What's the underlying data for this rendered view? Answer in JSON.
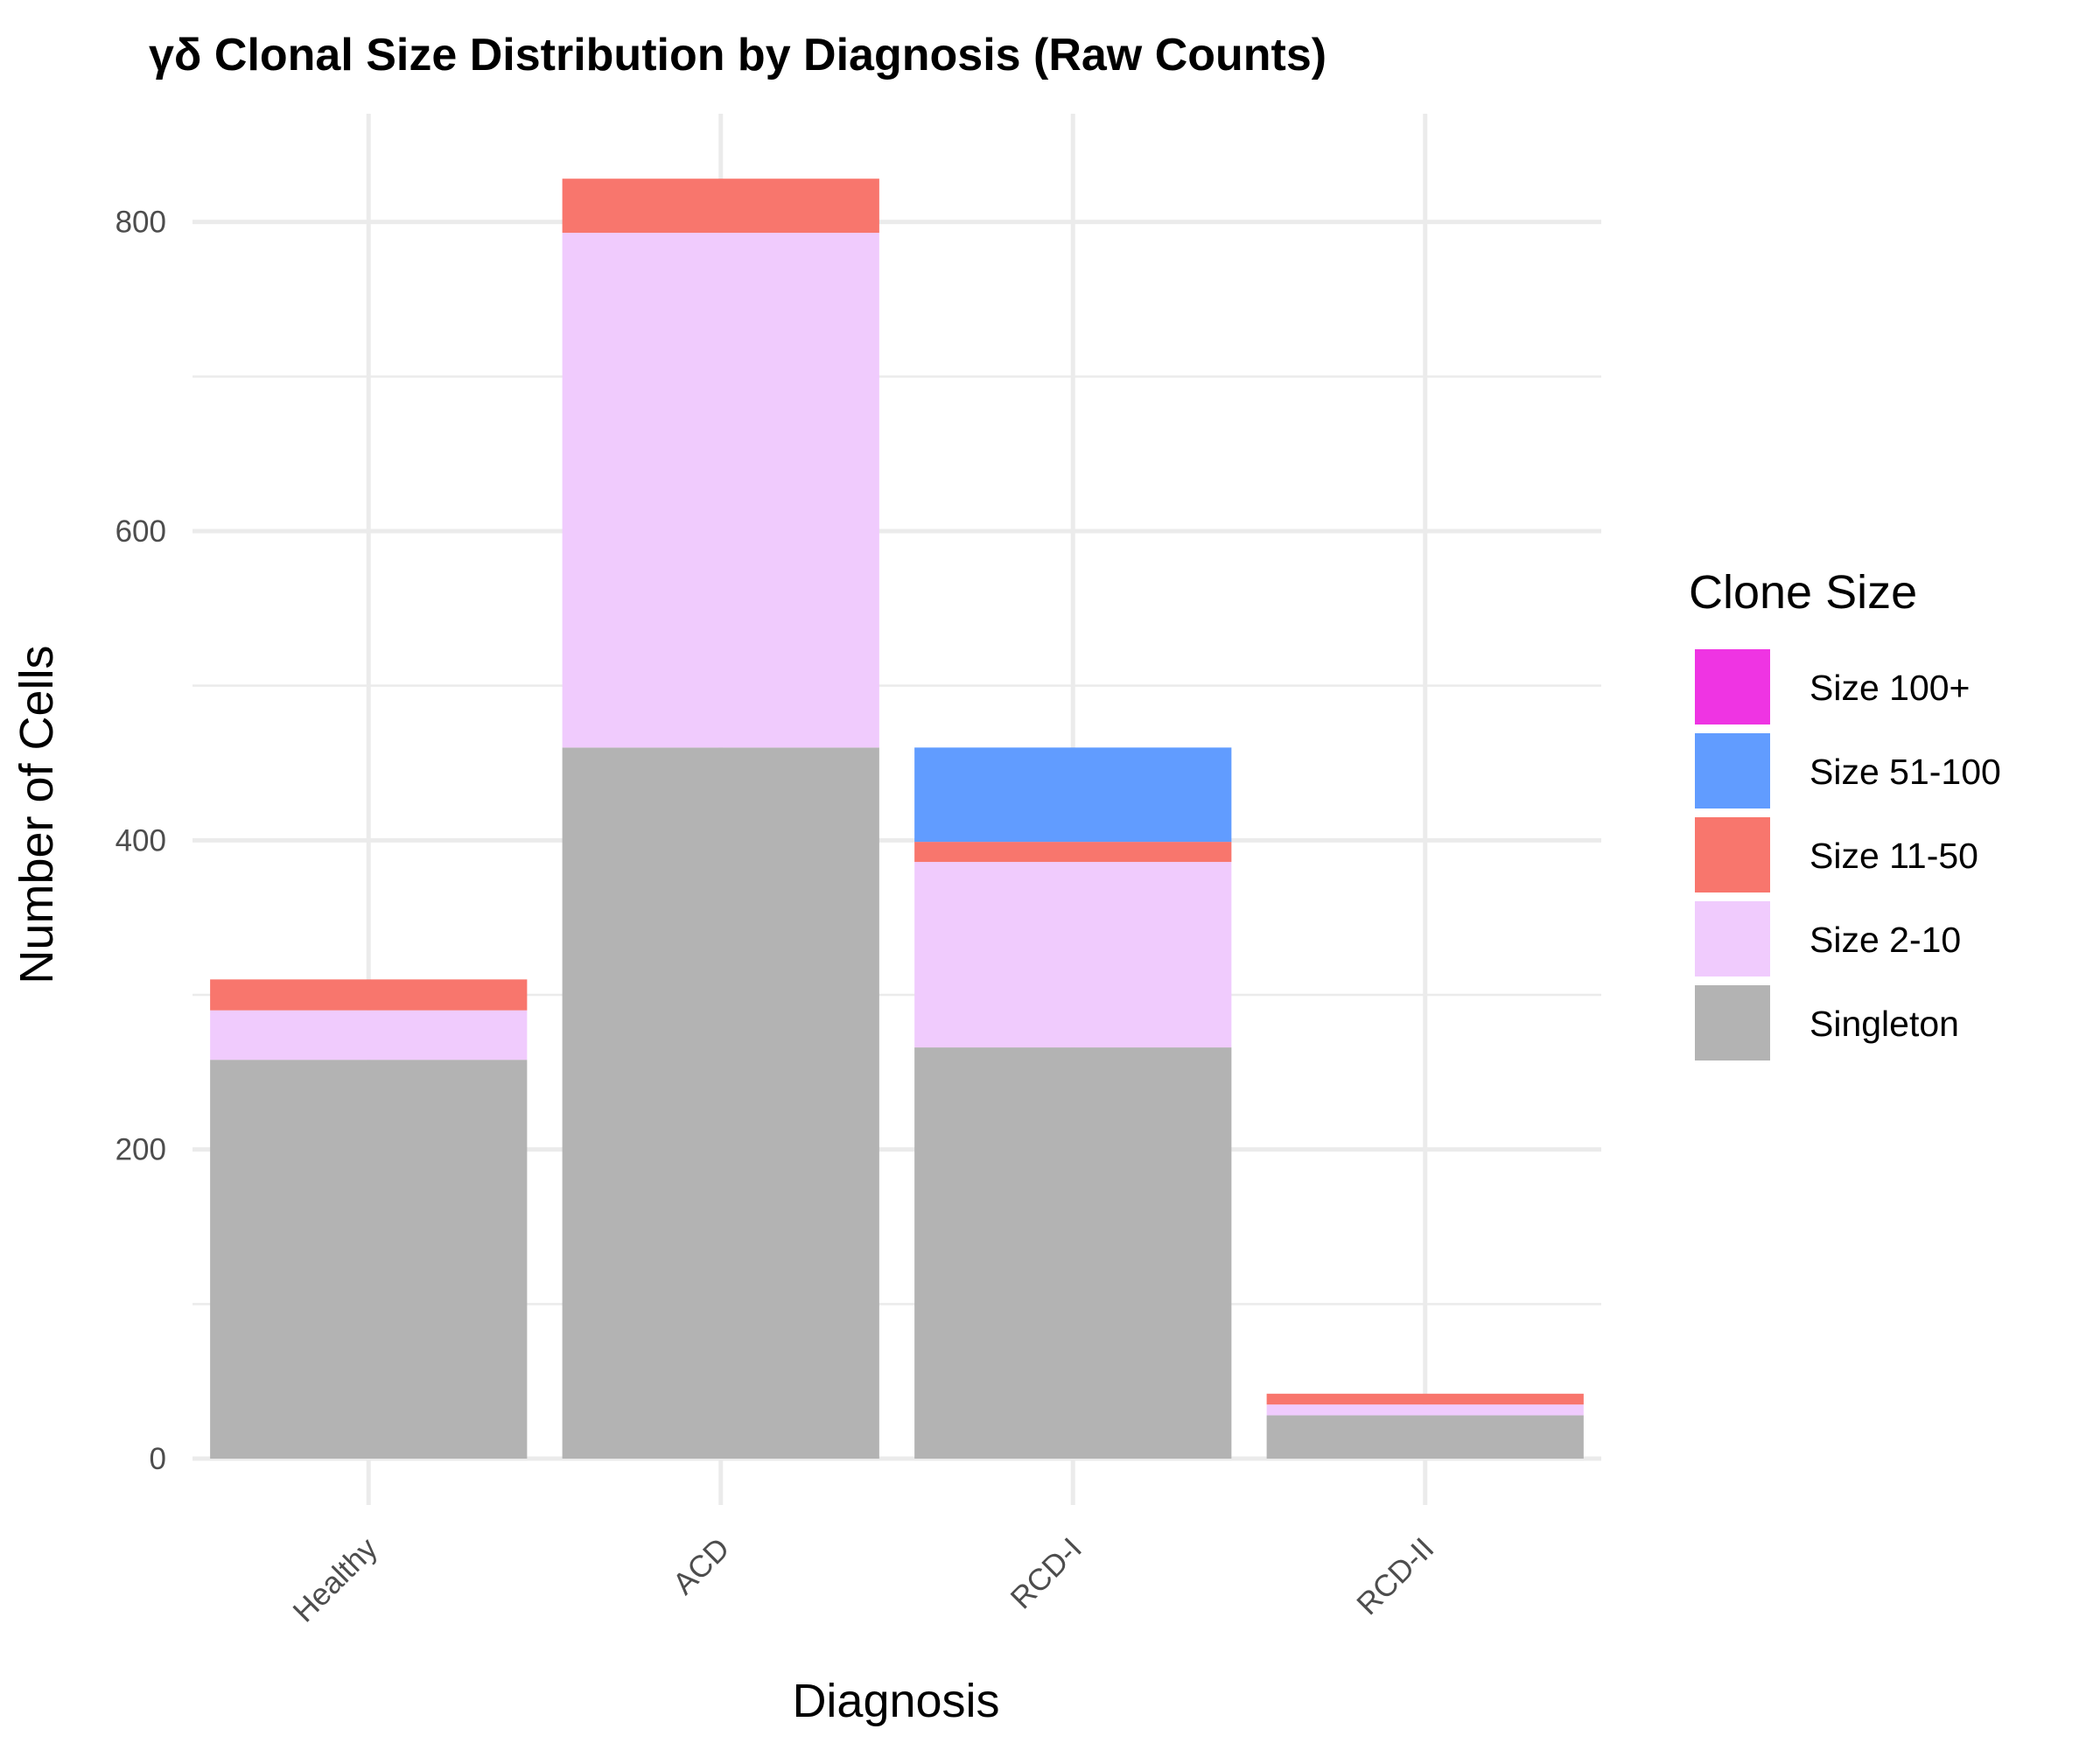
{
  "chart_data": {
    "type": "bar",
    "stacked": true,
    "title": "γδ Clonal Size Distribution by Diagnosis (Raw Counts)",
    "xlabel": "Diagnosis",
    "ylabel": "Number of Cells",
    "categories": [
      "Healthy",
      "ACD",
      "RCD-I",
      "RCD-II"
    ],
    "ylim": [
      -30,
      870
    ],
    "y_ticks": [
      0,
      200,
      400,
      600,
      800
    ],
    "y_tick_labels": [
      "0",
      "200",
      "400",
      "600",
      "800"
    ],
    "grid": true,
    "legend": {
      "title": "Clone Size",
      "position": "right"
    },
    "series": [
      {
        "name": "Singleton",
        "color": "#b3b3b3",
        "values": [
          258,
          460,
          266,
          28
        ]
      },
      {
        "name": "Size 2-10",
        "color": "#f0cbfd",
        "values": [
          32,
          333,
          120,
          7
        ]
      },
      {
        "name": "Size 11-50",
        "color": "#f8766d",
        "values": [
          20,
          35,
          13,
          7
        ]
      },
      {
        "name": "Size 51-100",
        "color": "#619cff",
        "values": [
          0,
          0,
          61,
          0
        ]
      },
      {
        "name": "Size 100+",
        "color": "#ef34e3",
        "values": [
          0,
          0,
          0,
          0
        ]
      }
    ]
  }
}
